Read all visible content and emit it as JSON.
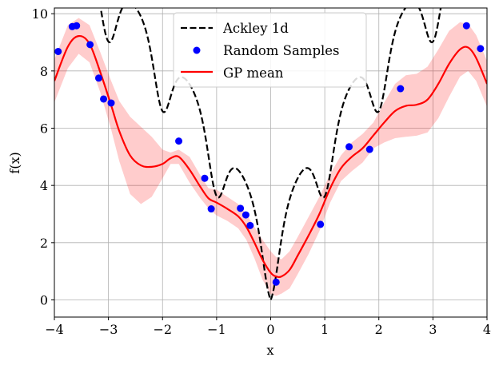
{
  "chart_data": {
    "type": "line",
    "title": "",
    "xlabel": "x",
    "ylabel": "f(x)",
    "xlim": [
      -4,
      4
    ],
    "ylim": [
      -0.6,
      10.2
    ],
    "grid": true,
    "legend_position": "top-center",
    "x_ticks": [
      -4,
      -3,
      -2,
      -1,
      0,
      1,
      2,
      3,
      4
    ],
    "x_tick_labels": [
      "−4",
      "−3",
      "−2",
      "−1",
      "0",
      "1",
      "2",
      "3",
      "4"
    ],
    "y_ticks": [
      0,
      2,
      4,
      6,
      8,
      10
    ],
    "y_tick_labels": [
      "0",
      "2",
      "4",
      "6",
      "8",
      "10"
    ],
    "series": [
      {
        "name": "Ackley 1d",
        "style": "dashed",
        "color": "#000000",
        "function": "ackley",
        "x_range": [
          -4,
          4
        ]
      },
      {
        "name": "Random Samples",
        "style": "markers",
        "color": "#0000ff",
        "points": [
          [
            -3.93,
            8.68
          ],
          [
            -3.67,
            9.55
          ],
          [
            -3.59,
            9.58
          ],
          [
            -3.34,
            8.92
          ],
          [
            -3.18,
            7.75
          ],
          [
            -3.09,
            7.02
          ],
          [
            -2.95,
            6.88
          ],
          [
            -1.7,
            5.55
          ],
          [
            -1.22,
            4.25
          ],
          [
            -1.1,
            3.18
          ],
          [
            -0.56,
            3.2
          ],
          [
            -0.46,
            2.97
          ],
          [
            -0.38,
            2.6
          ],
          [
            0.1,
            0.62
          ],
          [
            0.92,
            2.64
          ],
          [
            1.45,
            5.35
          ],
          [
            1.83,
            5.26
          ],
          [
            2.4,
            7.38
          ],
          [
            3.62,
            9.58
          ],
          [
            3.88,
            8.78
          ]
        ]
      },
      {
        "name": "GP mean",
        "style": "solid",
        "color": "#ff0000",
        "x": [
          -4,
          -3.75,
          -3.55,
          -3.35,
          -3.15,
          -2.95,
          -2.8,
          -2.6,
          -2.4,
          -2.2,
          -2.0,
          -1.85,
          -1.7,
          -1.5,
          -1.3,
          -1.15,
          -1.0,
          -0.8,
          -0.6,
          -0.45,
          -0.3,
          -0.15,
          0.0,
          0.1,
          0.2,
          0.35,
          0.5,
          0.7,
          0.9,
          1.1,
          1.3,
          1.5,
          1.7,
          1.9,
          2.1,
          2.3,
          2.5,
          2.7,
          2.9,
          3.1,
          3.3,
          3.5,
          3.65,
          3.8,
          4.0
        ],
        "y": [
          7.65,
          8.85,
          9.22,
          8.95,
          7.95,
          6.8,
          5.9,
          5.05,
          4.7,
          4.65,
          4.75,
          4.95,
          5.0,
          4.55,
          3.95,
          3.55,
          3.4,
          3.18,
          2.92,
          2.55,
          2.0,
          1.4,
          0.95,
          0.82,
          0.82,
          1.05,
          1.55,
          2.25,
          3.0,
          3.9,
          4.6,
          5.0,
          5.3,
          5.75,
          6.2,
          6.6,
          6.78,
          6.82,
          7.0,
          7.55,
          8.25,
          8.75,
          8.82,
          8.45,
          7.55
        ],
        "band_upper": [
          8.4,
          9.6,
          9.85,
          9.6,
          8.65,
          7.65,
          6.95,
          6.4,
          6.05,
          5.7,
          5.25,
          5.15,
          5.25,
          5.0,
          4.35,
          3.9,
          3.85,
          3.6,
          3.35,
          3.0,
          2.55,
          2.1,
          1.7,
          1.5,
          1.42,
          1.7,
          2.2,
          2.9,
          3.6,
          4.4,
          5.05,
          5.5,
          5.8,
          6.2,
          6.9,
          7.55,
          7.85,
          7.9,
          8.15,
          8.75,
          9.4,
          9.7,
          9.65,
          9.25,
          8.35
        ],
        "band_lower": [
          6.9,
          8.1,
          8.6,
          8.3,
          7.25,
          5.95,
          4.85,
          3.7,
          3.35,
          3.6,
          4.25,
          4.75,
          4.75,
          4.1,
          3.55,
          3.2,
          2.95,
          2.76,
          2.5,
          2.1,
          1.45,
          0.7,
          0.2,
          0.14,
          0.22,
          0.4,
          0.9,
          1.6,
          2.4,
          3.4,
          4.15,
          4.5,
          4.8,
          5.3,
          5.5,
          5.65,
          5.7,
          5.74,
          5.85,
          6.35,
          7.1,
          7.8,
          8.0,
          7.65,
          6.75
        ]
      }
    ]
  }
}
